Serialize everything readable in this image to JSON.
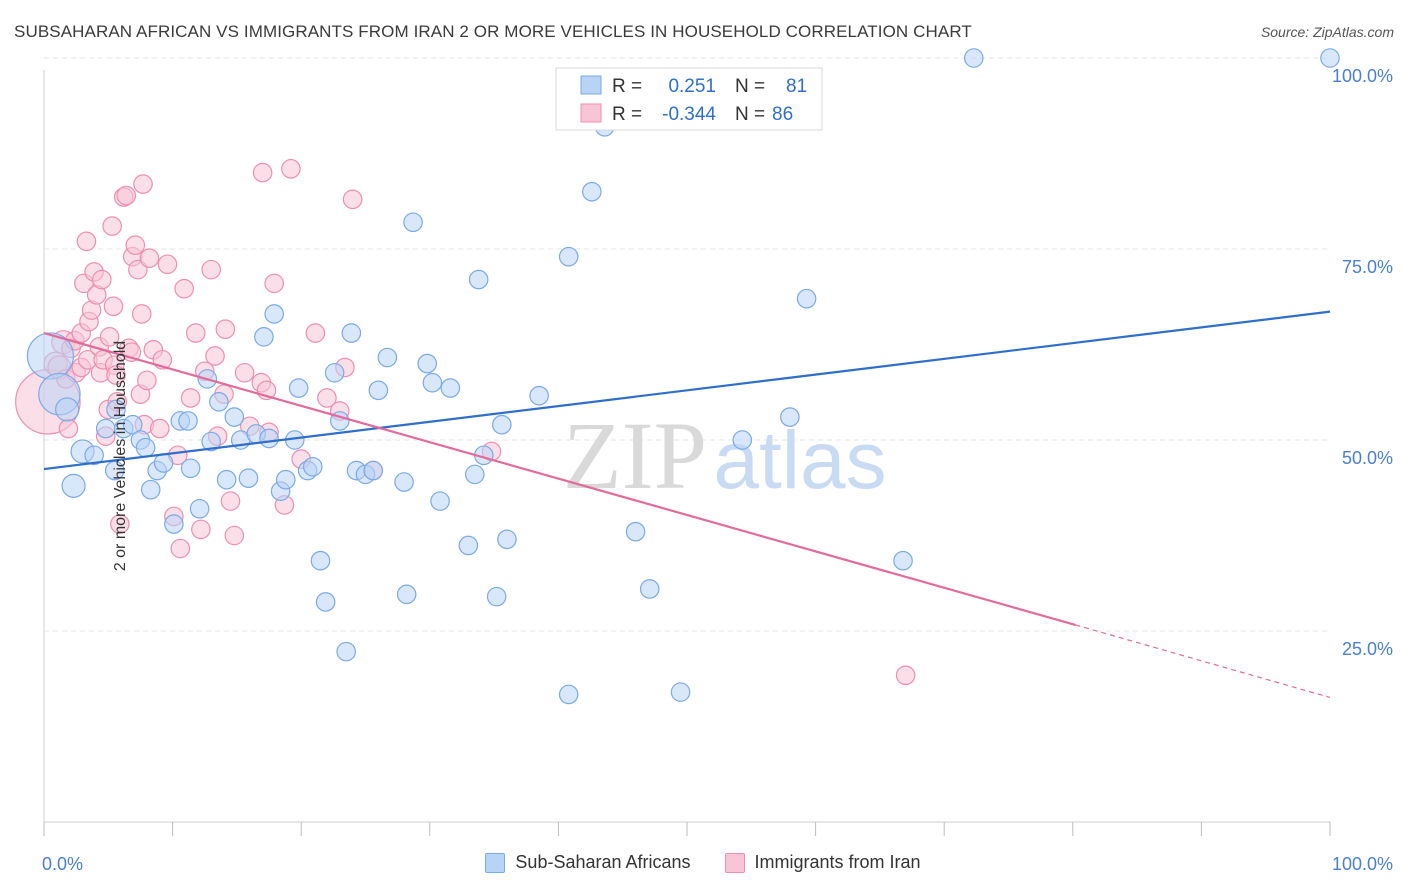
{
  "title": "SUBSAHARAN AFRICAN VS IMMIGRANTS FROM IRAN 2 OR MORE VEHICLES IN HOUSEHOLD CORRELATION CHART",
  "source": "Source: ZipAtlas.com",
  "watermark": {
    "zip": "ZIP",
    "atlas": "atlas"
  },
  "colors": {
    "blue": "#7aaae8",
    "blue_fill": "#b8d3f5",
    "blue_line": "#2f6fcb",
    "pink": "#ef8fb0",
    "pink_fill": "#f8c5d6",
    "pink_line": "#e26b9b",
    "axis_text": "#4a7fd0",
    "grid": "#e6e6e6"
  },
  "legend": {
    "rows": [
      {
        "r_label": "R =",
        "r_value": "0.251",
        "n_label": "N =",
        "n_value": "81"
      },
      {
        "r_label": "R =",
        "r_value": "-0.344",
        "n_label": "N =",
        "n_value": "86"
      }
    ]
  },
  "bottom_legend": {
    "a": "Sub-Saharan Africans",
    "b": "Immigrants from Iran"
  },
  "chart_data": {
    "type": "scatter",
    "title": "SUBSAHARAN AFRICAN VS IMMIGRANTS FROM IRAN 2 OR MORE VEHICLES IN HOUSEHOLD CORRELATION CHART",
    "xlabel": "",
    "ylabel": "2 or more Vehicles in Household",
    "xlim": [
      0,
      100
    ],
    "ylim": [
      0,
      102
    ],
    "x_tick_labels": [
      "0.0%",
      "100.0%"
    ],
    "y_tick_labels": [
      "25.0%",
      "50.0%",
      "75.0%",
      "100.0%"
    ],
    "y_ticks": [
      25,
      50,
      75,
      100
    ],
    "grid": true,
    "legend_position": "top-center",
    "series": [
      {
        "name": "Sub-Saharan Africans",
        "r": 0.251,
        "n": 81,
        "trend": {
          "x0": 0,
          "y0": 46.2,
          "x1": 100,
          "y1": 66.8
        },
        "points": [
          [
            0.5,
            61,
            20
          ],
          [
            1.2,
            56,
            18
          ],
          [
            1.8,
            54,
            10
          ],
          [
            2.3,
            44,
            10
          ],
          [
            3.0,
            48.5,
            10
          ],
          [
            3.9,
            48,
            8
          ],
          [
            4.8,
            51.5,
            8
          ],
          [
            5.5,
            46,
            8
          ],
          [
            5.6,
            54,
            8
          ],
          [
            6.2,
            51.5,
            8
          ],
          [
            6.9,
            52,
            8
          ],
          [
            7.5,
            50,
            8
          ],
          [
            7.9,
            49,
            8
          ],
          [
            8.3,
            43.5,
            8
          ],
          [
            8.8,
            46,
            8
          ],
          [
            9.3,
            47,
            8
          ],
          [
            10.1,
            39,
            8
          ],
          [
            10.6,
            52.5,
            8
          ],
          [
            11.2,
            52.5,
            8
          ],
          [
            11.4,
            46.3,
            8
          ],
          [
            12.1,
            41,
            8
          ],
          [
            12.7,
            58,
            8
          ],
          [
            13.0,
            49.8,
            8
          ],
          [
            13.6,
            55,
            8
          ],
          [
            14.2,
            44.8,
            8
          ],
          [
            14.8,
            53,
            8
          ],
          [
            15.3,
            50,
            8
          ],
          [
            15.9,
            45,
            8
          ],
          [
            16.5,
            50.8,
            8
          ],
          [
            17.1,
            63.5,
            8
          ],
          [
            17.5,
            50.2,
            8
          ],
          [
            17.9,
            66.5,
            8
          ],
          [
            18.4,
            43.3,
            8
          ],
          [
            18.8,
            44.8,
            8
          ],
          [
            19.5,
            50,
            8
          ],
          [
            19.8,
            56.8,
            8
          ],
          [
            20.5,
            46,
            8
          ],
          [
            20.9,
            46.5,
            8
          ],
          [
            21.5,
            34.2,
            8
          ],
          [
            21.9,
            28.8,
            8
          ],
          [
            22.6,
            58.8,
            8
          ],
          [
            23.0,
            52.5,
            8
          ],
          [
            23.5,
            22.3,
            8
          ],
          [
            23.9,
            64,
            8
          ],
          [
            24.3,
            46,
            8
          ],
          [
            25.0,
            45.5,
            8
          ],
          [
            25.6,
            46,
            8
          ],
          [
            26.0,
            56.5,
            8
          ],
          [
            26.7,
            60.8,
            8
          ],
          [
            28.0,
            44.5,
            8
          ],
          [
            28.2,
            29.8,
            8
          ],
          [
            28.7,
            78.5,
            8
          ],
          [
            29.8,
            60,
            8
          ],
          [
            30.2,
            57.5,
            8
          ],
          [
            30.8,
            42,
            8
          ],
          [
            31.6,
            56.8,
            8
          ],
          [
            33.0,
            36.2,
            8
          ],
          [
            33.5,
            45.5,
            8
          ],
          [
            33.8,
            71,
            8
          ],
          [
            34.2,
            48,
            8
          ],
          [
            35.2,
            29.5,
            8
          ],
          [
            35.6,
            52,
            8
          ],
          [
            36.0,
            37,
            8
          ],
          [
            38.5,
            55.8,
            8
          ],
          [
            40.8,
            74,
            8
          ],
          [
            40.8,
            16.7,
            8
          ],
          [
            42.6,
            82.5,
            8
          ],
          [
            43.6,
            91,
            8
          ],
          [
            46.0,
            38,
            8
          ],
          [
            47.1,
            30.5,
            8
          ],
          [
            49.5,
            17,
            8
          ],
          [
            54.3,
            50,
            8
          ],
          [
            58.0,
            53,
            8
          ],
          [
            59.3,
            68.5,
            8
          ],
          [
            66.8,
            34.2,
            8
          ],
          [
            72.3,
            100,
            8
          ],
          [
            100.0,
            100,
            8
          ]
        ]
      },
      {
        "name": "Immigrants from Iran",
        "r": -0.344,
        "n": 86,
        "trend": {
          "x0": 0,
          "y0": 64.0,
          "x1": 80.2,
          "y1": 25.8,
          "dash_to": {
            "x": 100,
            "y": 16.3
          }
        },
        "points": [
          [
            0.3,
            55,
            28
          ],
          [
            0.9,
            60,
            10
          ],
          [
            1.2,
            59.5,
            10
          ],
          [
            1.5,
            62.8,
            10
          ],
          [
            1.7,
            58,
            8
          ],
          [
            1.9,
            51.5,
            8
          ],
          [
            2.1,
            62,
            8
          ],
          [
            2.4,
            63,
            8
          ],
          [
            2.5,
            58.8,
            8
          ],
          [
            2.9,
            59.5,
            8
          ],
          [
            2.9,
            64,
            8
          ],
          [
            3.1,
            70.5,
            8
          ],
          [
            3.3,
            76,
            8
          ],
          [
            3.4,
            60.5,
            8
          ],
          [
            3.5,
            65.5,
            8
          ],
          [
            3.7,
            67,
            8
          ],
          [
            3.9,
            72,
            8
          ],
          [
            4.1,
            69,
            8
          ],
          [
            4.3,
            62.2,
            8
          ],
          [
            4.4,
            58.8,
            8
          ],
          [
            4.5,
            71,
            8
          ],
          [
            4.6,
            60.5,
            8
          ],
          [
            4.8,
            50.5,
            8
          ],
          [
            5.0,
            54,
            8
          ],
          [
            5.1,
            63.5,
            8
          ],
          [
            5.3,
            78,
            8
          ],
          [
            5.4,
            67.5,
            8
          ],
          [
            5.5,
            59.8,
            8
          ],
          [
            5.6,
            58.5,
            8
          ],
          [
            5.7,
            55,
            8
          ],
          [
            5.9,
            39,
            8
          ],
          [
            6.2,
            81.8,
            8
          ],
          [
            6.4,
            82,
            8
          ],
          [
            6.6,
            62,
            8
          ],
          [
            6.8,
            61.5,
            8
          ],
          [
            6.9,
            74,
            8
          ],
          [
            7.1,
            75.5,
            8
          ],
          [
            7.3,
            72.3,
            8
          ],
          [
            7.5,
            56,
            8
          ],
          [
            7.6,
            66.5,
            8
          ],
          [
            7.7,
            83.5,
            8
          ],
          [
            7.8,
            52,
            8
          ],
          [
            8.0,
            57.8,
            8
          ],
          [
            8.2,
            73.8,
            8
          ],
          [
            8.5,
            61.8,
            8
          ],
          [
            9.0,
            51.5,
            8
          ],
          [
            9.2,
            60.5,
            8
          ],
          [
            9.6,
            73,
            8
          ],
          [
            10.1,
            40,
            8
          ],
          [
            10.4,
            48,
            8
          ],
          [
            10.6,
            35.8,
            8
          ],
          [
            10.9,
            69.8,
            8
          ],
          [
            11.4,
            55.5,
            8
          ],
          [
            11.8,
            64,
            8
          ],
          [
            12.2,
            38.3,
            8
          ],
          [
            12.5,
            59,
            8
          ],
          [
            13.0,
            72.3,
            8
          ],
          [
            13.3,
            61,
            8
          ],
          [
            13.5,
            50.5,
            8
          ],
          [
            14.0,
            56,
            8
          ],
          [
            14.1,
            64.5,
            8
          ],
          [
            14.5,
            42,
            8
          ],
          [
            14.8,
            37.5,
            8
          ],
          [
            15.6,
            58.8,
            8
          ],
          [
            16.0,
            51.8,
            8
          ],
          [
            16.9,
            57.5,
            8
          ],
          [
            17.0,
            85,
            8
          ],
          [
            17.3,
            56.5,
            8
          ],
          [
            17.5,
            51,
            8
          ],
          [
            17.9,
            70.5,
            8
          ],
          [
            18.7,
            41.5,
            8
          ],
          [
            19.2,
            85.5,
            8
          ],
          [
            20.0,
            47.5,
            8
          ],
          [
            21.1,
            64,
            8
          ],
          [
            22.0,
            55.5,
            8
          ],
          [
            23.0,
            53.8,
            8
          ],
          [
            23.4,
            59.5,
            8
          ],
          [
            24.0,
            81.5,
            8
          ],
          [
            25.6,
            46,
            8
          ],
          [
            34.8,
            48.5,
            8
          ],
          [
            67.0,
            19.2,
            8
          ]
        ]
      }
    ]
  }
}
